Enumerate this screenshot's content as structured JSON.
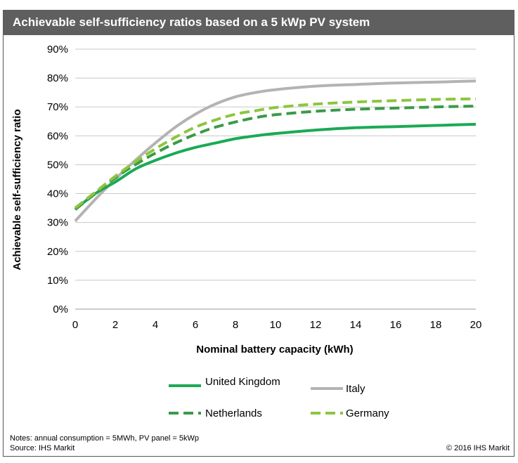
{
  "title": "Achievable self-sufficiency ratios based on a 5 kWp PV system",
  "notes": "Notes: annual consumption = 5MWh, PV panel = 5kWp",
  "source": "Source: IHS Markit",
  "copyright": "© 2016 IHS Markit",
  "chart_data": {
    "type": "line",
    "xlabel": "Nominal battery capacity (kWh)",
    "ylabel": "Achievable self-sufficiency ratio",
    "xlim": [
      0,
      20
    ],
    "ylim": [
      0,
      90
    ],
    "x_ticks": [
      "0",
      "2",
      "4",
      "6",
      "8",
      "10",
      "12",
      "14",
      "16",
      "18",
      "20"
    ],
    "y_ticks": [
      "0%",
      "10%",
      "20%",
      "30%",
      "40%",
      "50%",
      "60%",
      "70%",
      "80%",
      "90%"
    ],
    "grid": "horizontal",
    "legend_position": "bottom",
    "x": [
      0,
      1,
      2,
      3,
      4,
      5,
      6,
      7,
      8,
      9,
      10,
      12,
      14,
      16,
      18,
      20
    ],
    "series": [
      {
        "name": "United Kingdom",
        "color": "#1aaa55",
        "style": "solid",
        "values": [
          34.5,
          40,
          44,
          48.5,
          51.5,
          54,
          56,
          57.5,
          59,
          60,
          60.8,
          62,
          62.8,
          63.2,
          63.6,
          64
        ]
      },
      {
        "name": "Italy",
        "color": "#b3b3b3",
        "style": "solid",
        "values": [
          30.5,
          38,
          45,
          51.5,
          57.5,
          63,
          67.5,
          71,
          73.5,
          75,
          76,
          77.2,
          77.8,
          78.3,
          78.6,
          79
        ]
      },
      {
        "name": "Netherlands",
        "color": "#3c9a48",
        "style": "dashed",
        "values": [
          34.5,
          40,
          45.5,
          50,
          54,
          57.5,
          60.5,
          63,
          64.8,
          66.3,
          67.3,
          68.5,
          69.2,
          69.6,
          70,
          70.3
        ]
      },
      {
        "name": "Germany",
        "color": "#8cc63f",
        "style": "dashed",
        "values": [
          35,
          40.5,
          46,
          51,
          55.5,
          59.5,
          63,
          65.5,
          67.5,
          68.7,
          69.8,
          71,
          71.7,
          72.2,
          72.6,
          72.8
        ]
      }
    ]
  }
}
